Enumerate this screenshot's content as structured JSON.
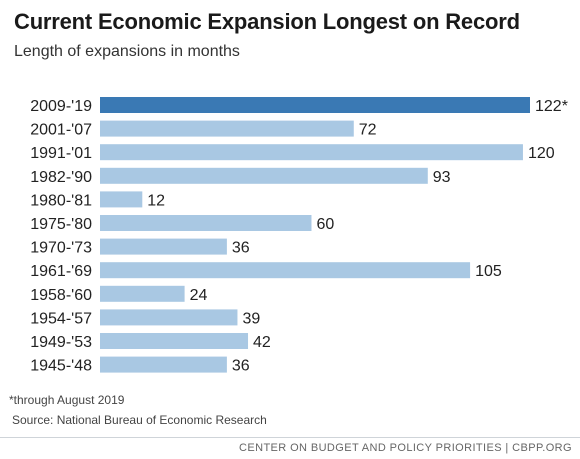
{
  "chart_data": {
    "type": "bar",
    "orientation": "horizontal",
    "title": "Current Economic Expansion Longest on Record",
    "subtitle": "Length of expansions in months",
    "categories": [
      "2009-'19",
      "2001-'07",
      "1991-'01",
      "1982-'90",
      "1980-'81",
      "1975-'80",
      "1970-'73",
      "1961-'69",
      "1958-'60",
      "1954-'57",
      "1949-'53",
      "1945-'48"
    ],
    "values": [
      122,
      72,
      120,
      93,
      12,
      60,
      36,
      105,
      24,
      39,
      42,
      36
    ],
    "value_labels": [
      "122*",
      "72",
      "120",
      "93",
      "12",
      "60",
      "36",
      "105",
      "24",
      "39",
      "42",
      "36"
    ],
    "highlight_index": 0,
    "xlim": [
      0,
      122
    ],
    "grid": false,
    "colors": {
      "highlight": "#3a79b4",
      "default": "#a9c8e3"
    }
  },
  "footnote": "*through August 2019",
  "source": "Source: National Bureau of Economic Research",
  "footer": "CENTER ON BUDGET AND POLICY PRIORITIES | CBPP.ORG"
}
